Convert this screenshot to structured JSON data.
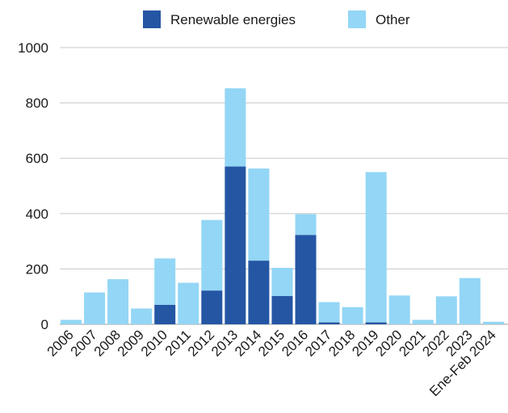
{
  "chart_data": {
    "type": "bar",
    "stacked": true,
    "title": "",
    "xlabel": "",
    "ylabel": "",
    "ylim": [
      0,
      1000
    ],
    "yticks": [
      0,
      200,
      400,
      600,
      800,
      1000
    ],
    "grid": true,
    "legend_position": "top-center",
    "categories": [
      "2006",
      "2007",
      "2008",
      "2009",
      "2010",
      "2011",
      "2012",
      "2013",
      "2014",
      "2015",
      "2016",
      "2017",
      "2018",
      "2019",
      "2020",
      "2021",
      "2022",
      "2023",
      "Ene-Feb 2024"
    ],
    "series": [
      {
        "name": "Renewable energies",
        "color": "#2456a4",
        "values": [
          0,
          0,
          0,
          0,
          70,
          0,
          122,
          570,
          230,
          102,
          323,
          7,
          0,
          7,
          0,
          0,
          0,
          0,
          0
        ]
      },
      {
        "name": "Other",
        "color": "#93d6f5",
        "values": [
          16,
          115,
          163,
          57,
          168,
          150,
          255,
          283,
          333,
          102,
          75,
          73,
          62,
          543,
          104,
          16,
          101,
          167,
          9
        ]
      }
    ]
  }
}
